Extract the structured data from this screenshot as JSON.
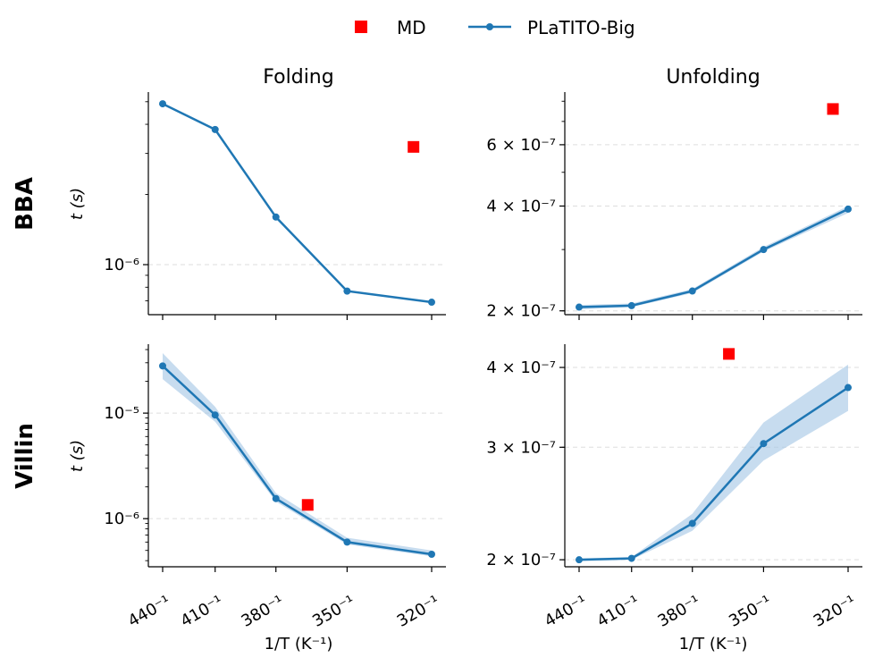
{
  "legend": {
    "md_label": "MD",
    "model_label": "PLaTITO-Big"
  },
  "colors": {
    "model": "#1f77b4",
    "band": "#a9c9e6",
    "md": "#ff0000",
    "grid": "#dddddd"
  },
  "col_titles": [
    "Folding",
    "Unfolding"
  ],
  "row_labels": [
    "BBA",
    "Villin"
  ],
  "y_label": "t (s)",
  "x_label": "1/T (K⁻¹)",
  "chart_data": [
    {
      "id": "bba-folding",
      "type": "line",
      "yscale": "log",
      "title": "Folding",
      "row": "BBA",
      "ylabel": "t (s)",
      "xlabel": "",
      "ylim": [
        6.1e-07,
        5.5e-06
      ],
      "yticks": [
        {
          "value": 1e-06,
          "label": "10⁻⁶"
        }
      ],
      "x": [
        440,
        410,
        380,
        350,
        320
      ],
      "xtick_labels": [
        "440⁻¹",
        "410⁻¹",
        "380⁻¹",
        "350⁻¹",
        "320⁻¹"
      ],
      "series": [
        {
          "name": "PLaTITO-Big",
          "values": [
            4.9e-06,
            3.8e-06,
            1.6e-06,
            7.7e-07,
            6.9e-07
          ],
          "lower": [
            4.9e-06,
            3.8e-06,
            1.6e-06,
            7.7e-07,
            6.9e-07
          ],
          "upper": [
            4.9e-06,
            3.8e-06,
            1.6e-06,
            7.7e-07,
            6.9e-07
          ]
        }
      ],
      "md": {
        "x": 326,
        "y": 3.2e-06
      }
    },
    {
      "id": "bba-unfolding",
      "type": "line",
      "yscale": "log",
      "title": "Unfolding",
      "row": "BBA",
      "ylabel": "",
      "xlabel": "",
      "ylim": [
        1.95e-07,
        8.5e-07
      ],
      "yticks": [
        {
          "value": 2e-07,
          "label": "2 × 10⁻⁷"
        },
        {
          "value": 4e-07,
          "label": "4 × 10⁻⁷"
        },
        {
          "value": 6e-07,
          "label": "6 × 10⁻⁷"
        }
      ],
      "x": [
        440,
        410,
        380,
        350,
        320
      ],
      "xtick_labels": [
        "440⁻¹",
        "410⁻¹",
        "380⁻¹",
        "350⁻¹",
        "320⁻¹"
      ],
      "series": [
        {
          "name": "PLaTITO-Big",
          "values": [
            2.05e-07,
            2.07e-07,
            2.28e-07,
            3e-07,
            3.92e-07
          ],
          "lower": [
            2.02e-07,
            2.05e-07,
            2.25e-07,
            2.96e-07,
            3.82e-07
          ],
          "upper": [
            2.08e-07,
            2.1e-07,
            2.31e-07,
            3.05e-07,
            4e-07
          ]
        }
      ],
      "md": {
        "x": 325,
        "y": 7.6e-07
      }
    },
    {
      "id": "villin-folding",
      "type": "line",
      "yscale": "log",
      "title": "",
      "row": "Villin",
      "ylabel": "t (s)",
      "xlabel": "1/T (K⁻¹)",
      "ylim": [
        3.5e-07,
        4.5e-05
      ],
      "yticks": [
        {
          "value": 1e-06,
          "label": "10⁻⁶"
        },
        {
          "value": 1e-05,
          "label": "10⁻⁵"
        }
      ],
      "x": [
        440,
        410,
        380,
        350,
        320
      ],
      "xtick_labels": [
        "440⁻¹",
        "410⁻¹",
        "380⁻¹",
        "350⁻¹",
        "320⁻¹"
      ],
      "series": [
        {
          "name": "PLaTITO-Big",
          "values": [
            2.8e-05,
            9.6e-06,
            1.55e-06,
            6e-07,
            4.6e-07
          ],
          "lower": [
            2.1e-05,
            8.3e-06,
            1.45e-06,
            5.7e-07,
            4.4e-07
          ],
          "upper": [
            3.7e-05,
            1.15e-05,
            1.75e-06,
            6.6e-07,
            5e-07
          ]
        }
      ],
      "md": {
        "x": 366,
        "y": 1.35e-06
      }
    },
    {
      "id": "villin-unfolding",
      "type": "line",
      "yscale": "log",
      "title": "",
      "row": "Villin",
      "ylabel": "",
      "xlabel": "1/T (K⁻¹)",
      "ylim": [
        1.95e-07,
        4.35e-07
      ],
      "yticks": [
        {
          "value": 2e-07,
          "label": "2 × 10⁻⁷"
        },
        {
          "value": 3e-07,
          "label": "3 × 10⁻⁷"
        },
        {
          "value": 4e-07,
          "label": "4 × 10⁻⁷"
        }
      ],
      "x": [
        440,
        410,
        380,
        350,
        320
      ],
      "xtick_labels": [
        "440⁻¹",
        "410⁻¹",
        "380⁻¹",
        "350⁻¹",
        "320⁻¹"
      ],
      "series": [
        {
          "name": "PLaTITO-Big",
          "values": [
            2e-07,
            2.01e-07,
            2.28e-07,
            3.04e-07,
            3.72e-07
          ],
          "lower": [
            1.99e-07,
            2e-07,
            2.22e-07,
            2.86e-07,
            3.42e-07
          ],
          "upper": [
            2.01e-07,
            2.02e-07,
            2.36e-07,
            3.28e-07,
            4.04e-07
          ]
        }
      ],
      "md": {
        "x": 364,
        "y": 4.2e-07
      }
    }
  ]
}
